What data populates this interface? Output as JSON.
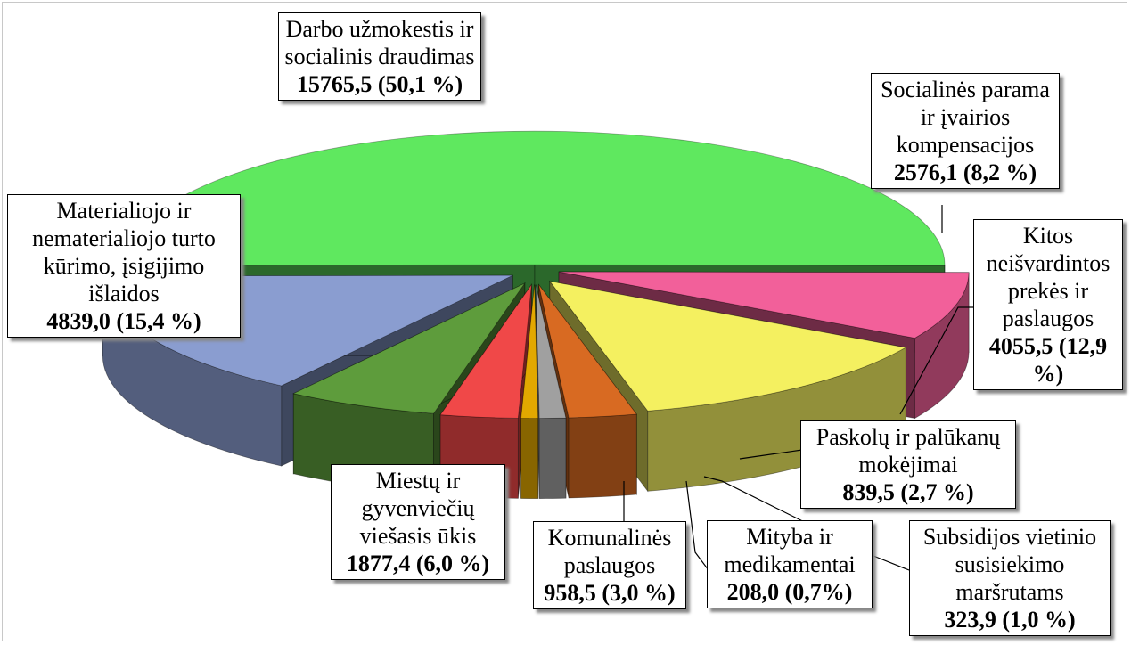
{
  "chart_data": {
    "type": "pie",
    "categories": [
      "Darbo užmokestis ir socialinis draudimas",
      "Socialinės parama ir įvairios kompensacijos",
      "Kitos neišvardintos prekės ir paslaugos",
      "Paskolų ir palūkanų mokėjimai",
      "Subsidijos vietinio susisiekimo maršrutams",
      "Mityba ir medikamentai",
      "Komunalinės paslaugos",
      "Miestų ir gyvenviečių viešasis ūkis",
      "Materialiojo ir nematerialiojo turto kūrimo,  įsigijimo išlaidos"
    ],
    "values": [
      15765.5,
      2576.1,
      4055.5,
      839.5,
      323.9,
      208.0,
      958.5,
      1877.4,
      4839.0
    ],
    "value_labels": [
      "15765,5 (50,1 %)",
      "2576,1 (8,2 %)",
      "4055,5 (12,9 %)",
      "839,5 (2,7 %)",
      "323,9 (1,0 %)",
      "208,0 (0,7%)",
      "958,5 (3,0 %)",
      "1877,4 (6,0 %)",
      "4839,0 (15,4 %)"
    ],
    "colors": [
      "#5fe85f",
      "#f2609a",
      "#f4f060",
      "#d86a22",
      "#a0a0a0",
      "#e2a800",
      "#f04848",
      "#5e9c3c",
      "#8a9dd0"
    ]
  }
}
